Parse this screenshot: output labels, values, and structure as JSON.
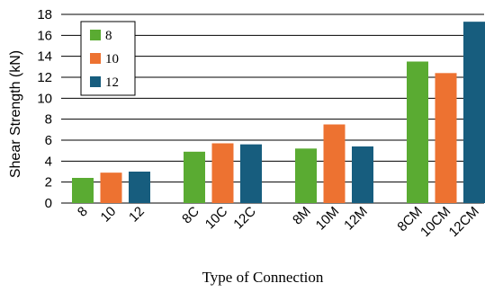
{
  "chart_data": {
    "type": "bar",
    "title": "",
    "xlabel": "Type of Connection",
    "ylabel": "Shear Strength (kN)",
    "ylim": [
      0,
      18
    ],
    "yticks": [
      0,
      2,
      4,
      6,
      8,
      10,
      12,
      14,
      16,
      18
    ],
    "grid": "horizontal",
    "legend": {
      "placement": "top-left",
      "entries": [
        {
          "label": "8",
          "color": "#5aab32"
        },
        {
          "label": "10",
          "color": "#ed7231"
        },
        {
          "label": "12",
          "color": "#175d7e"
        }
      ]
    },
    "groups": [
      {
        "bars": [
          {
            "label": "8",
            "value": 2.4,
            "color": "#5aab32"
          },
          {
            "label": "10",
            "value": 2.9,
            "color": "#ed7231"
          },
          {
            "label": "12",
            "value": 3.0,
            "color": "#175d7e"
          }
        ]
      },
      {
        "bars": [
          {
            "label": "8C",
            "value": 4.9,
            "color": "#5aab32"
          },
          {
            "label": "10C",
            "value": 5.7,
            "color": "#ed7231"
          },
          {
            "label": "12C",
            "value": 5.6,
            "color": "#175d7e"
          }
        ]
      },
      {
        "bars": [
          {
            "label": "8M",
            "value": 5.2,
            "color": "#5aab32"
          },
          {
            "label": "10M",
            "value": 7.5,
            "color": "#ed7231"
          },
          {
            "label": "12M",
            "value": 5.4,
            "color": "#175d7e"
          }
        ]
      },
      {
        "bars": [
          {
            "label": "8CM",
            "value": 13.5,
            "color": "#5aab32"
          },
          {
            "label": "10CM",
            "value": 12.4,
            "color": "#ed7231"
          },
          {
            "label": "12CM",
            "value": 17.3,
            "color": "#175d7e"
          }
        ]
      }
    ]
  }
}
